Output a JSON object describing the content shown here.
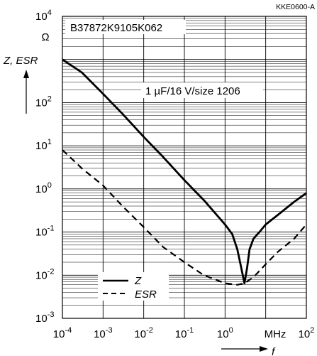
{
  "chart_data": {
    "type": "line",
    "doc_code": "KKE0600-A",
    "part_number": "B37872K9105K062",
    "annotation": "1 µF/16 V/size 1206",
    "ylabel": "Z, ESR",
    "y_unit": "Ω",
    "xlabel": "f",
    "x_unit": "MHz",
    "x_scale": "log",
    "y_scale": "log",
    "xlim": [
      0.0001,
      100
    ],
    "ylim": [
      0.001,
      10000
    ],
    "grid": true,
    "legend_position": "bottom-left",
    "x_ticks": [
      {
        "base": "10",
        "exp": "-4"
      },
      {
        "base": "10",
        "exp": "-3"
      },
      {
        "base": "10",
        "exp": "-2"
      },
      {
        "base": "10",
        "exp": "-1"
      },
      {
        "base": "10",
        "exp": "0"
      },
      {
        "base": "",
        "exp": ""
      },
      {
        "base": "10",
        "exp": "2"
      }
    ],
    "y_ticks": [
      {
        "base": "10",
        "exp": "-3"
      },
      {
        "base": "10",
        "exp": "-2"
      },
      {
        "base": "10",
        "exp": "-1"
      },
      {
        "base": "10",
        "exp": "0"
      },
      {
        "base": "10",
        "exp": "1"
      },
      {
        "base": "10",
        "exp": "2"
      },
      {
        "base": "",
        "exp": ""
      },
      {
        "base": "10",
        "exp": "4"
      }
    ],
    "series": [
      {
        "name": "Z",
        "style": "solid",
        "color": "#000000",
        "x": [
          0.0001,
          0.0003,
          0.001,
          0.003,
          0.01,
          0.03,
          0.1,
          0.3,
          1,
          1.5,
          2,
          2.5,
          3,
          3.5,
          4,
          5,
          7,
          10,
          20,
          50,
          100
        ],
        "y": [
          1000,
          500,
          160,
          55,
          16,
          5.5,
          1.6,
          0.55,
          0.15,
          0.09,
          0.04,
          0.015,
          0.0065,
          0.015,
          0.04,
          0.07,
          0.1,
          0.15,
          0.25,
          0.5,
          0.8
        ]
      },
      {
        "name": "ESR",
        "style": "dashed",
        "color": "#000000",
        "x": [
          0.0001,
          0.0003,
          0.001,
          0.003,
          0.01,
          0.03,
          0.1,
          0.3,
          1,
          2,
          3,
          5,
          10,
          20,
          50,
          100
        ],
        "y": [
          8,
          3,
          1.2,
          0.4,
          0.13,
          0.045,
          0.02,
          0.01,
          0.0065,
          0.006,
          0.0065,
          0.009,
          0.018,
          0.035,
          0.07,
          0.15
        ]
      }
    ]
  }
}
